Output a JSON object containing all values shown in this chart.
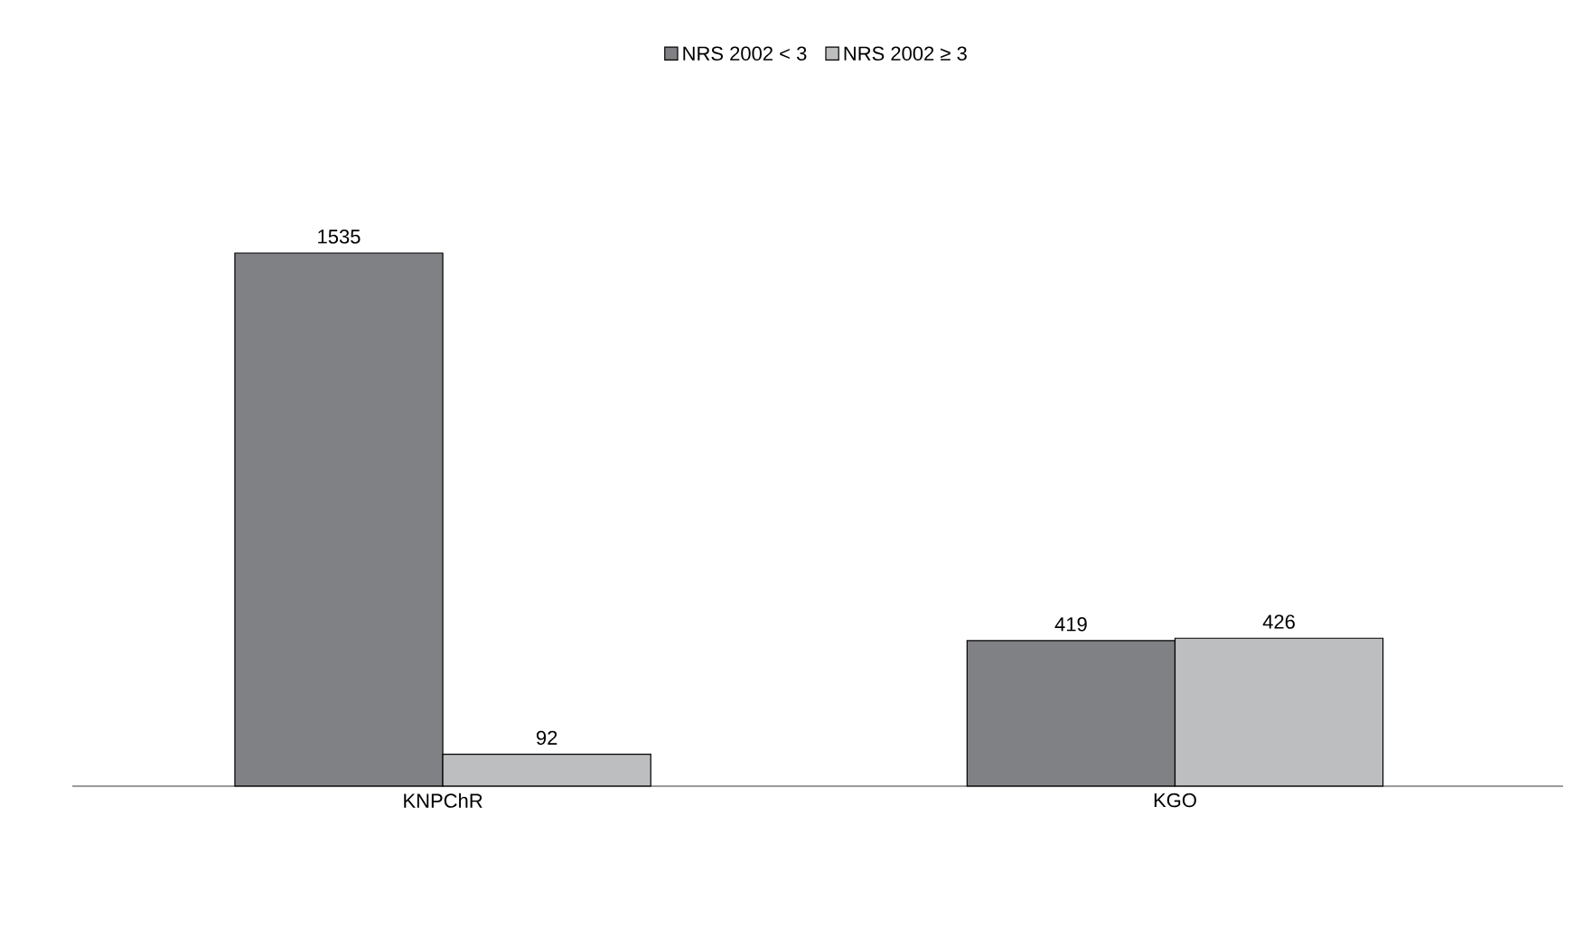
{
  "chart_data": {
    "type": "bar",
    "categories": [
      "KNPChR",
      "KGO"
    ],
    "series": [
      {
        "name": "NRS 2002 < 3",
        "color": "#808184",
        "values": [
          1535,
          419
        ]
      },
      {
        "name": "NRS 2002 ≥ 3",
        "color": "#bcbec0",
        "values": [
          92,
          426
        ]
      }
    ],
    "data_labels": true,
    "legend": "top",
    "grid": false
  }
}
